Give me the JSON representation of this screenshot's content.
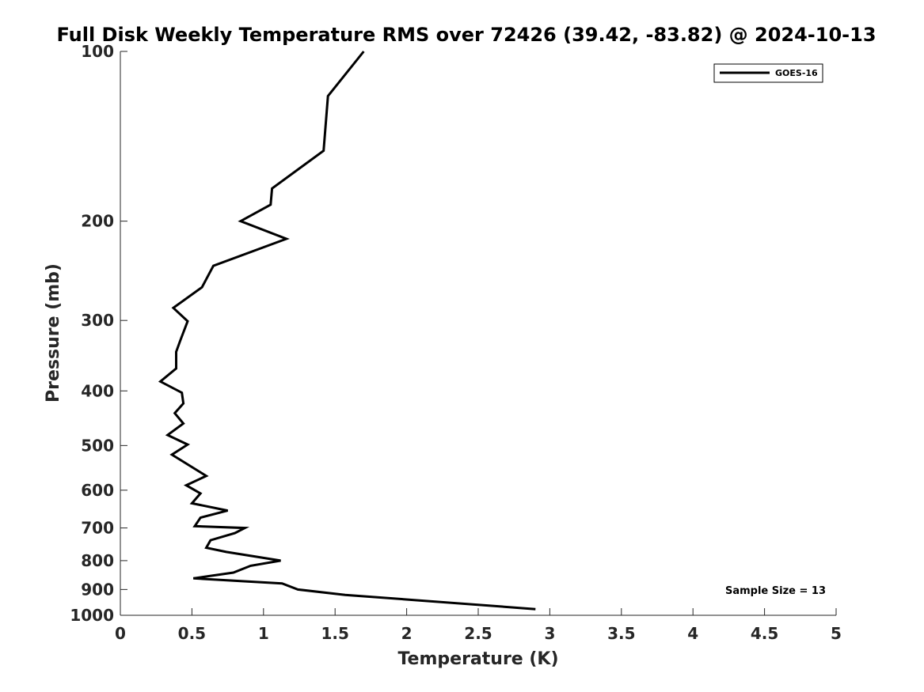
{
  "chart_data": {
    "type": "line",
    "title": "Full Disk Weekly Temperature RMS over 72426 (39.42, -83.82) @ 2024-10-13",
    "xlabel": "Temperature (K)",
    "ylabel": "Pressure (mb)",
    "xlim": [
      0,
      5
    ],
    "ylim": [
      100,
      1000
    ],
    "y_scale": "log",
    "y_reversed": true,
    "x_ticks": [
      0,
      0.5,
      1,
      1.5,
      2,
      2.5,
      3,
      3.5,
      4,
      4.5,
      5
    ],
    "x_tick_labels": [
      "0",
      "0.5",
      "1",
      "1.5",
      "2",
      "2.5",
      "3",
      "3.5",
      "4",
      "4.5",
      "5"
    ],
    "y_ticks": [
      100,
      200,
      300,
      400,
      500,
      600,
      700,
      800,
      900,
      1000
    ],
    "y_tick_labels": [
      "100",
      "200",
      "300",
      "400",
      "500",
      "600",
      "700",
      "800",
      "900",
      "1000"
    ],
    "grid": false,
    "legend_position": "top-right",
    "annotation": "Sample Size = 13",
    "series": [
      {
        "name": "GOES-16",
        "color": "#000000",
        "points": [
          [
            1.7,
            100
          ],
          [
            1.45,
            120
          ],
          [
            1.42,
            150
          ],
          [
            1.06,
            175
          ],
          [
            1.05,
            187
          ],
          [
            0.84,
            200
          ],
          [
            1.16,
            215
          ],
          [
            0.65,
            240
          ],
          [
            0.57,
            262
          ],
          [
            0.37,
            285
          ],
          [
            0.47,
            301
          ],
          [
            0.42,
            325
          ],
          [
            0.39,
            341
          ],
          [
            0.39,
            365
          ],
          [
            0.28,
            385
          ],
          [
            0.43,
            403
          ],
          [
            0.44,
            421
          ],
          [
            0.38,
            438
          ],
          [
            0.44,
            457
          ],
          [
            0.33,
            479
          ],
          [
            0.47,
            498
          ],
          [
            0.36,
            519
          ],
          [
            0.6,
            566
          ],
          [
            0.46,
            588
          ],
          [
            0.56,
            608
          ],
          [
            0.5,
            633
          ],
          [
            0.75,
            652
          ],
          [
            0.56,
            671
          ],
          [
            0.52,
            695
          ],
          [
            0.87,
            700
          ],
          [
            0.8,
            715
          ],
          [
            0.63,
            736
          ],
          [
            0.6,
            759
          ],
          [
            0.74,
            772
          ],
          [
            1.12,
            800
          ],
          [
            0.91,
            817
          ],
          [
            0.79,
            840
          ],
          [
            0.51,
            860
          ],
          [
            1.13,
            878
          ],
          [
            1.24,
            900
          ],
          [
            1.57,
            920
          ],
          [
            2.9,
            975
          ]
        ]
      }
    ]
  }
}
